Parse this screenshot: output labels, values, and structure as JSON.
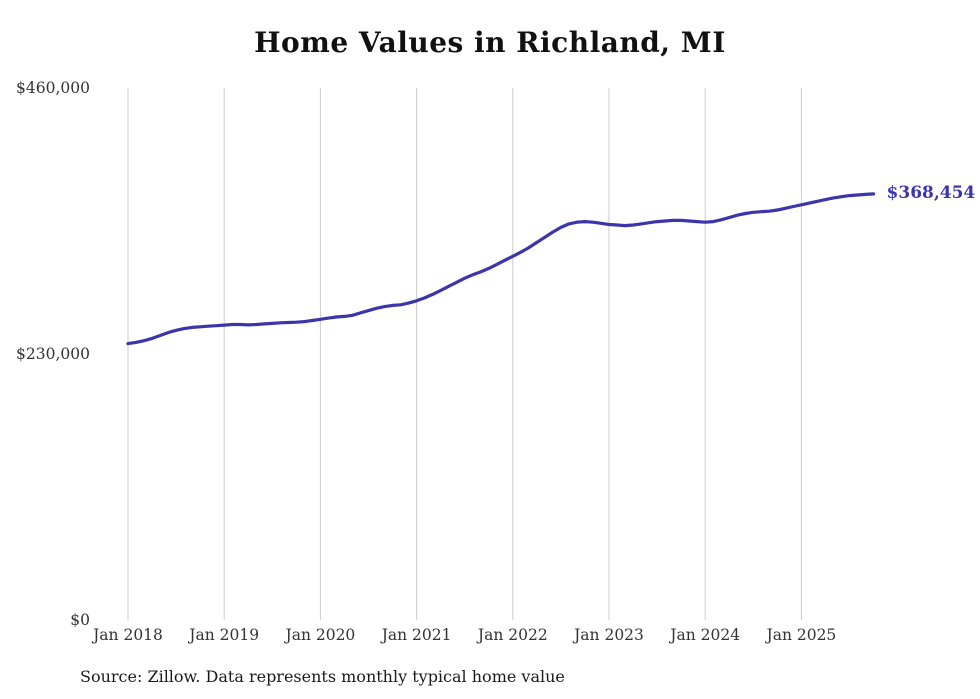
{
  "page": {
    "title": "Home Values in Richland, MI",
    "end_value_label": "$368,454",
    "source_note": "Source: Zillow. Data represents monthly typical home value"
  },
  "colors": {
    "line": "#3b35ad",
    "grid": "#cccccc",
    "axis_text": "#333333",
    "title_text": "#111111",
    "source_text": "#1a1a1a",
    "background": "#ffffff"
  },
  "chart_data": {
    "type": "line",
    "title": "Home Values in Richland, MI",
    "series_name": "Monthly typical home value",
    "x_start": "Jan 2018",
    "x_end": "Oct 2025",
    "x_frequency": "monthly",
    "grid": "vertical-only",
    "legend": "none",
    "ylim": [
      0,
      460000
    ],
    "yticks": [
      {
        "value": 0,
        "label": "$0"
      },
      {
        "value": 230000,
        "label": "$230,000"
      },
      {
        "value": 460000,
        "label": "$460,000"
      }
    ],
    "xticks": [
      {
        "month_index": 0,
        "label": "Jan 2018"
      },
      {
        "month_index": 12,
        "label": "Jan 2019"
      },
      {
        "month_index": 24,
        "label": "Jan 2020"
      },
      {
        "month_index": 36,
        "label": "Jan 2021"
      },
      {
        "month_index": 48,
        "label": "Jan 2022"
      },
      {
        "month_index": 60,
        "label": "Jan 2023"
      },
      {
        "month_index": 72,
        "label": "Jan 2024"
      },
      {
        "month_index": 84,
        "label": "Jan 2025"
      }
    ],
    "values": [
      239000,
      240000,
      241500,
      243500,
      246000,
      248500,
      250500,
      252000,
      253000,
      253500,
      254000,
      254500,
      255000,
      255500,
      255500,
      255200,
      255500,
      256000,
      256500,
      257000,
      257200,
      257500,
      258000,
      259000,
      260000,
      261000,
      262000,
      262500,
      263500,
      265500,
      267500,
      269500,
      271000,
      272000,
      272500,
      274000,
      276000,
      278500,
      281500,
      285000,
      288500,
      292000,
      295500,
      298500,
      301000,
      304000,
      307500,
      311000,
      314500,
      318000,
      322000,
      326500,
      331000,
      335500,
      339500,
      342500,
      344000,
      344500,
      344000,
      343000,
      342000,
      341500,
      341000,
      341500,
      342500,
      343500,
      344500,
      345000,
      345500,
      345500,
      345000,
      344500,
      344000,
      344500,
      346000,
      348000,
      350000,
      351500,
      352500,
      353000,
      353500,
      354500,
      356000,
      357500,
      359000,
      360500,
      362000,
      363500,
      365000,
      366000,
      367000,
      367500,
      368000,
      368454
    ],
    "final_value": 368454,
    "final_value_label": "$368,454"
  }
}
